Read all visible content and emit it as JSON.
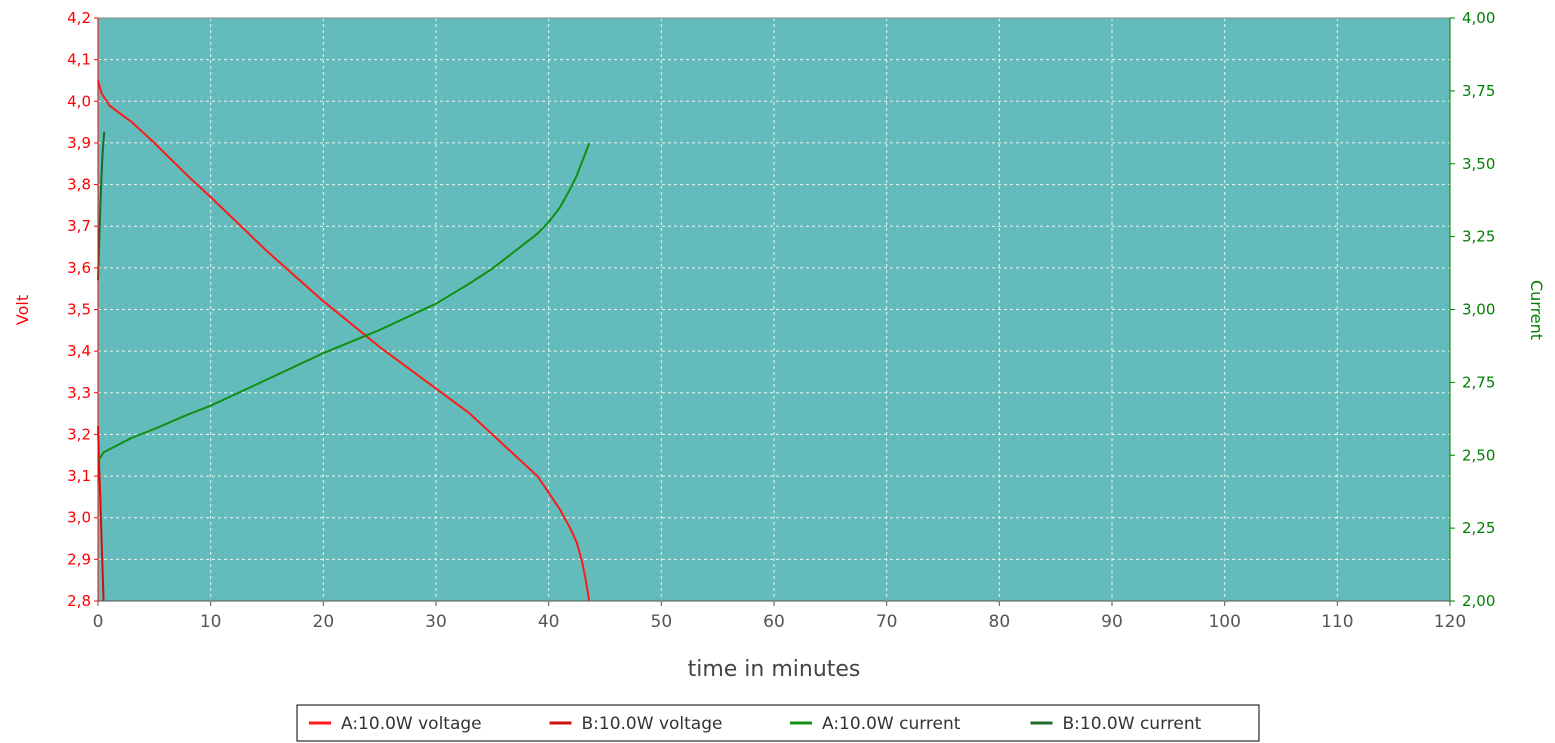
{
  "chart_data": {
    "type": "line",
    "xlabel": "time in minutes",
    "ylabel_left": "Volt",
    "ylabel_right": "Current",
    "xlim": [
      0,
      120
    ],
    "ylim_left": [
      2.8,
      4.2
    ],
    "ylim_right": [
      2.0,
      4.0
    ],
    "x_ticks": [
      "0",
      "10",
      "20",
      "30",
      "40",
      "50",
      "60",
      "70",
      "80",
      "90",
      "100",
      "110",
      "120"
    ],
    "y_left_ticks": [
      "2,8",
      "2,9",
      "3,0",
      "3,1",
      "3,2",
      "3,3",
      "3,4",
      "3,5",
      "3,6",
      "3,7",
      "3,8",
      "3,9",
      "4,0",
      "4,1",
      "4,2"
    ],
    "y_right_ticks": [
      "2,00",
      "2,25",
      "2,50",
      "2,75",
      "3,00",
      "3,25",
      "3,50",
      "3,75",
      "4,00"
    ],
    "grid": true,
    "plot_background": "#63bbbb",
    "legend_position": "bottom",
    "series": [
      {
        "name": "A:10.0W voltage",
        "axis": "left",
        "color": "#ff1a1a",
        "x": [
          0,
          0.3,
          1,
          2,
          3,
          5,
          8,
          10,
          15,
          20,
          25,
          30,
          33,
          35,
          37,
          39,
          40,
          41,
          42,
          42.5,
          43,
          43.3,
          43.6
        ],
        "y": [
          4.05,
          4.02,
          3.99,
          3.97,
          3.95,
          3.9,
          3.82,
          3.77,
          3.64,
          3.52,
          3.41,
          3.31,
          3.25,
          3.2,
          3.15,
          3.1,
          3.06,
          3.02,
          2.97,
          2.94,
          2.89,
          2.85,
          2.8
        ]
      },
      {
        "name": "B:10.0W voltage",
        "axis": "left",
        "color": "#cc1111",
        "x": [
          0,
          0.1,
          0.2,
          0.3,
          0.4,
          0.5
        ],
        "y": [
          3.22,
          3.12,
          3.05,
          2.96,
          2.88,
          2.8
        ]
      },
      {
        "name": "A:10.0W current",
        "axis": "right",
        "color": "#109010",
        "x": [
          0,
          0.5,
          1,
          2,
          3,
          5,
          8,
          10,
          15,
          20,
          25,
          30,
          33,
          35,
          37,
          39,
          40,
          41,
          42,
          42.5,
          43,
          43.3,
          43.6
        ],
        "y": [
          2.48,
          2.51,
          2.52,
          2.54,
          2.56,
          2.59,
          2.64,
          2.67,
          2.76,
          2.85,
          2.93,
          3.02,
          3.09,
          3.14,
          3.2,
          3.26,
          3.3,
          3.35,
          3.42,
          3.46,
          3.51,
          3.54,
          3.57
        ]
      },
      {
        "name": "B:10.0W current",
        "axis": "right",
        "color": "#1f6b2a",
        "x": [
          0,
          0.1,
          0.2,
          0.3,
          0.4,
          0.5,
          0.55
        ],
        "y": [
          3.1,
          3.22,
          3.35,
          3.45,
          3.53,
          3.58,
          3.61
        ]
      }
    ]
  }
}
